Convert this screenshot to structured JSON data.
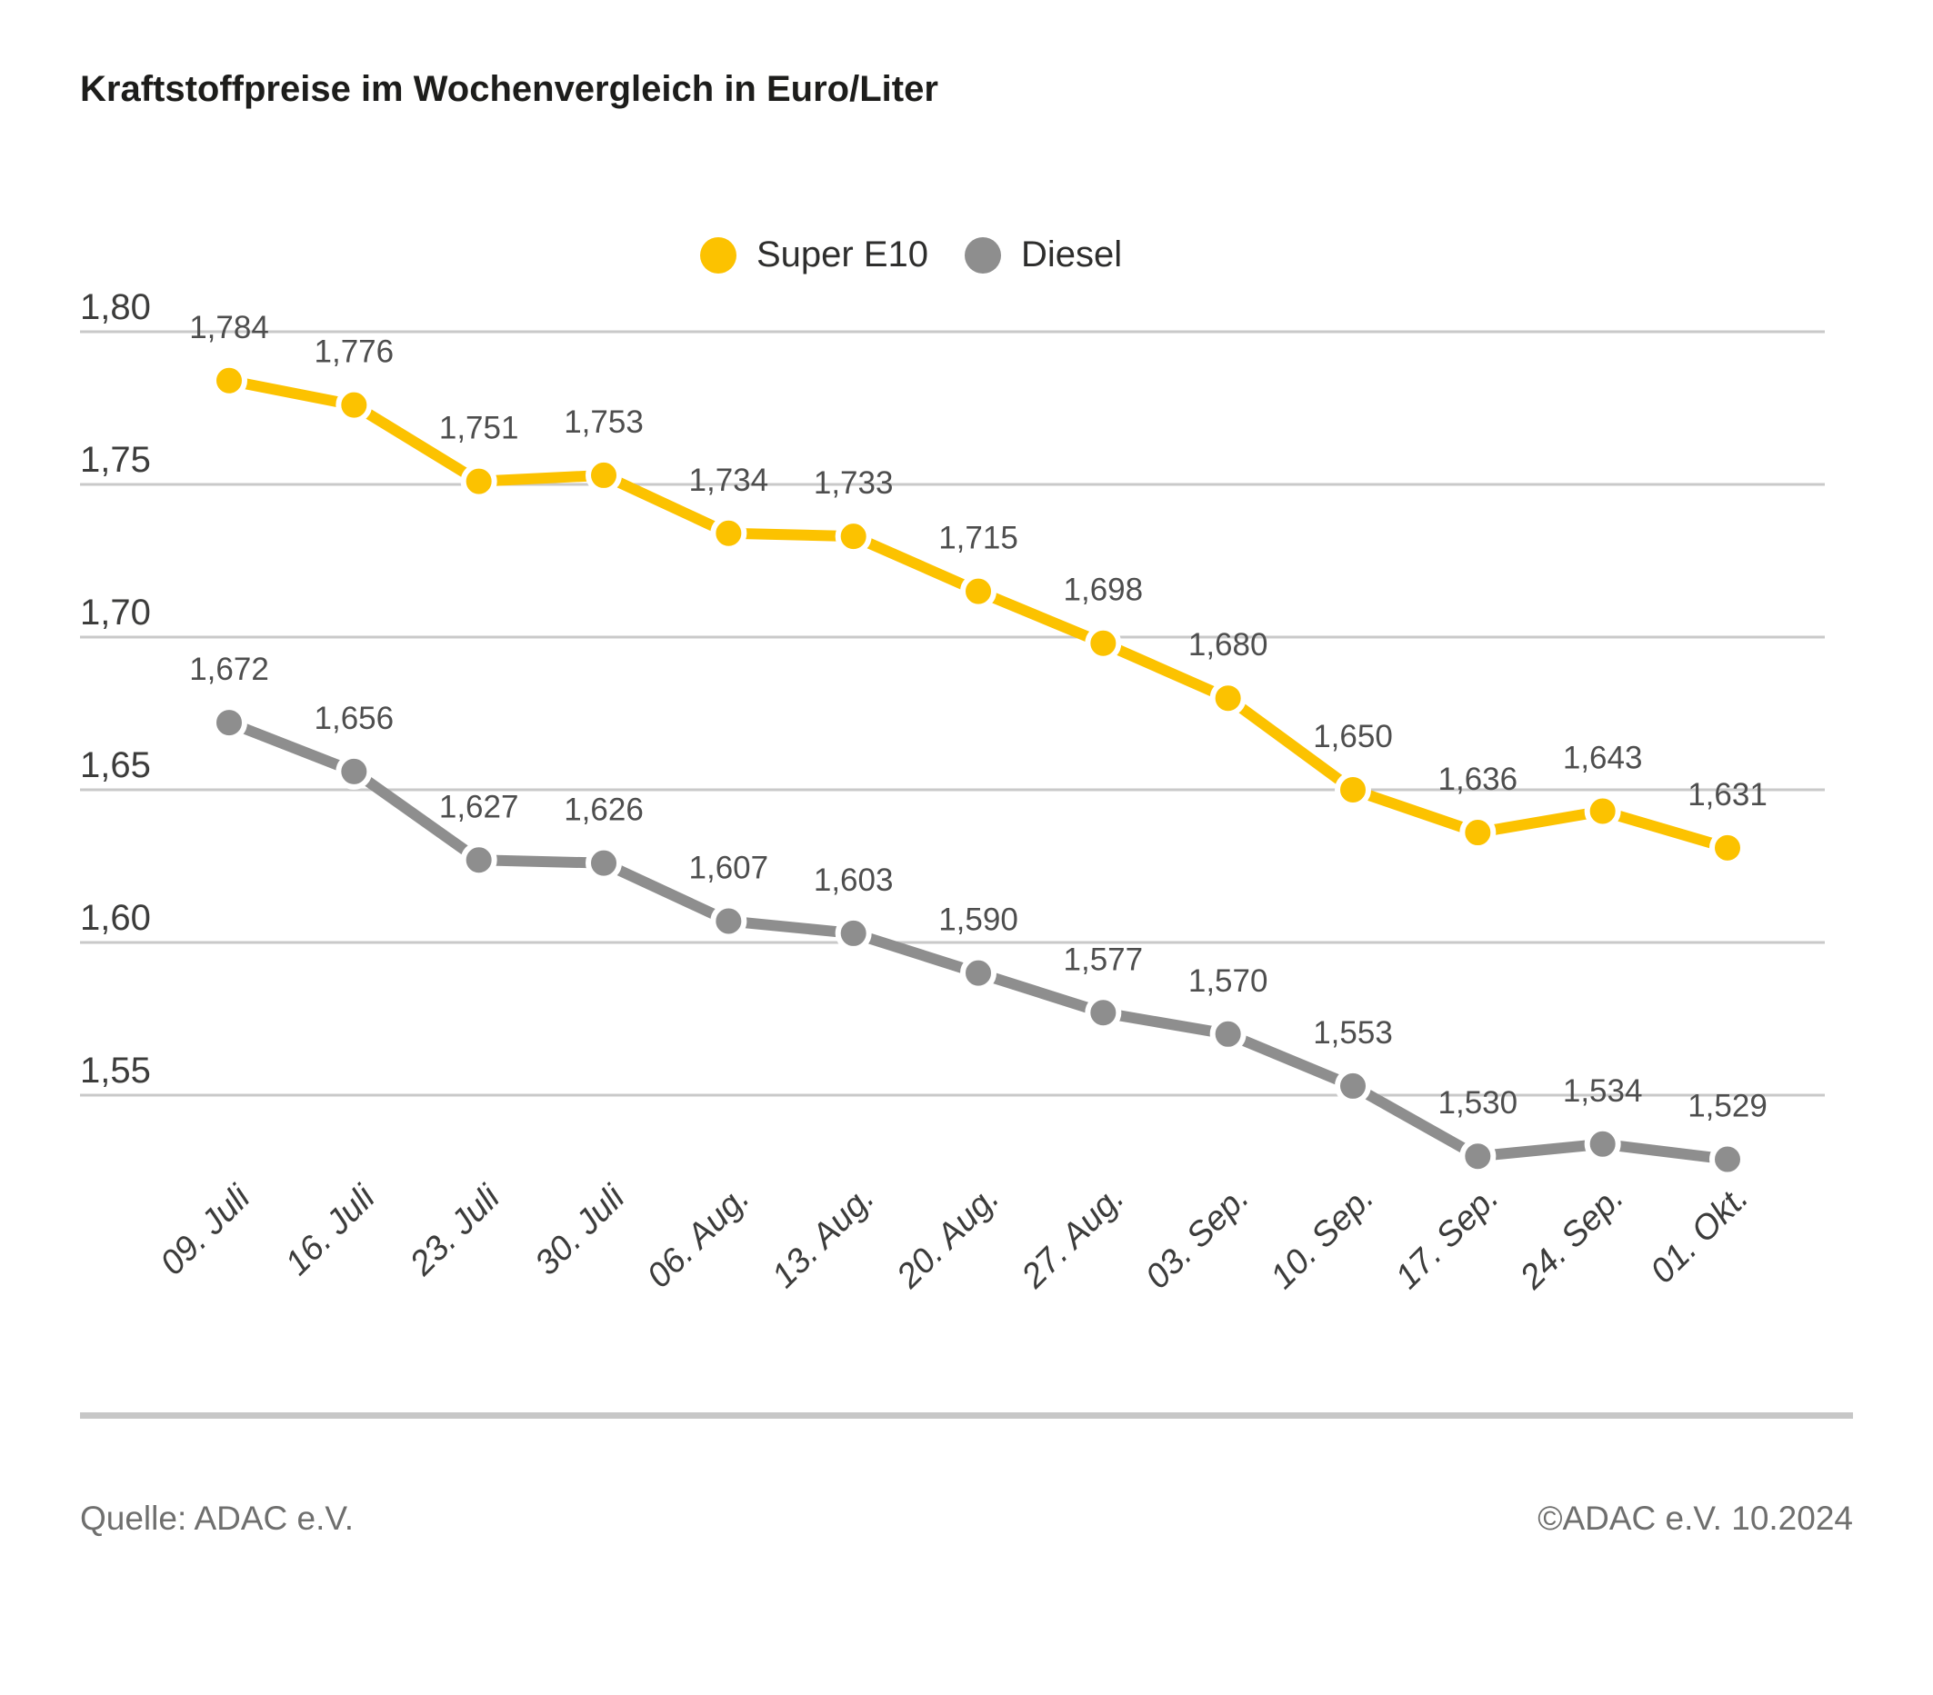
{
  "title": "Kraftstoffpreise im Wochenvergleich in Euro/Liter",
  "legend": [
    {
      "label": "Super E10",
      "color": "#FCC200"
    },
    {
      "label": "Diesel",
      "color": "#8E8E8E"
    }
  ],
  "chart_data": {
    "type": "line",
    "title": "Kraftstoffpreise im Wochenvergleich in Euro/Liter",
    "categories": [
      "09. Juli",
      "16. Juli",
      "23. Juli",
      "30. Juli",
      "06. Aug.",
      "13. Aug.",
      "20. Aug.",
      "27. Aug.",
      "03. Sep.",
      "10. Sep.",
      "17. Sep.",
      "24. Sep.",
      "01. Okt."
    ],
    "series": [
      {
        "name": "Super E10",
        "color": "#FCC200",
        "values": [
          1.784,
          1.776,
          1.751,
          1.753,
          1.734,
          1.733,
          1.715,
          1.698,
          1.68,
          1.65,
          1.636,
          1.643,
          1.631
        ],
        "labels": [
          "1,784",
          "1,776",
          "1,751",
          "1,753",
          "1,734",
          "1,733",
          "1,715",
          "1,698",
          "1,680",
          "1,650",
          "1,636",
          "1,643",
          "1,631"
        ]
      },
      {
        "name": "Diesel",
        "color": "#8E8E8E",
        "values": [
          1.672,
          1.656,
          1.627,
          1.626,
          1.607,
          1.603,
          1.59,
          1.577,
          1.57,
          1.553,
          1.53,
          1.534,
          1.529
        ],
        "labels": [
          "1,672",
          "1,656",
          "1,627",
          "1,626",
          "1,607",
          "1,603",
          "1,590",
          "1,577",
          "1,570",
          "1,553",
          "1,530",
          "1,534",
          "1,529"
        ]
      }
    ],
    "yticks": [
      {
        "value": 1.8,
        "label": "1,80"
      },
      {
        "value": 1.75,
        "label": "1,75"
      },
      {
        "value": 1.7,
        "label": "1,70"
      },
      {
        "value": 1.65,
        "label": "1,65"
      },
      {
        "value": 1.6,
        "label": "1,60"
      },
      {
        "value": 1.55,
        "label": "1,55"
      }
    ],
    "ylim": [
      1.52,
      1.81
    ],
    "grid": true,
    "legend_position": "top-center",
    "ylabel": "Euro/Liter",
    "xlabel": "",
    "style": {
      "grid_color": "#C9C9C9",
      "axis_label_color": "#3C3C3B",
      "value_label_color": "#4E4E4E"
    }
  },
  "footer": {
    "source": "Quelle: ADAC e.V.",
    "copyright": "©ADAC e.V. 10.2024"
  }
}
